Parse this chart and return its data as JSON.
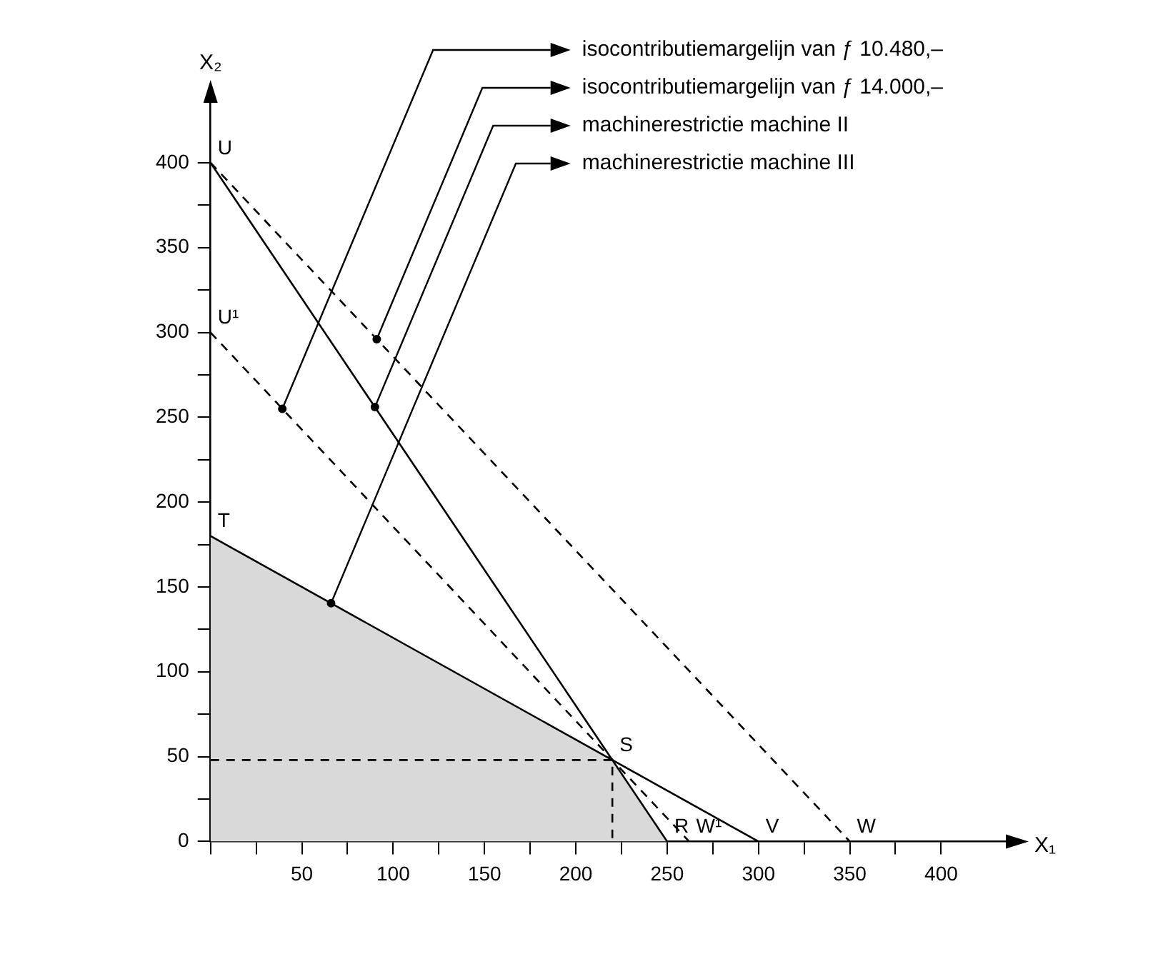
{
  "chart_data": {
    "type": "line",
    "xlabel": "X₁",
    "ylabel": "X₂",
    "series": [
      {
        "name": "isocontributiemargelijn van ƒ 10.480,–",
        "type": "line",
        "color": "#000000",
        "line_style": "dashed",
        "x": [
          0,
          262
        ],
        "values": [
          300,
          0
        ]
      },
      {
        "name": "isocontributiemargelijn van ƒ 14.000,–",
        "type": "line",
        "color": "#000000",
        "line_style": "dashed",
        "x": [
          0,
          350
        ],
        "values": [
          400,
          0
        ]
      },
      {
        "name": "machinerestrictie machine II",
        "type": "line",
        "color": "#000000",
        "line_style": "solid",
        "x": [
          0,
          250
        ],
        "values": [
          400,
          0
        ]
      },
      {
        "name": "machinerestrictie machine III",
        "type": "line",
        "color": "#000000",
        "line_style": "solid",
        "x": [
          0,
          300
        ],
        "values": [
          180,
          0
        ]
      },
      {
        "type": "area",
        "color": "#d9d9d9",
        "x": [
          0,
          220,
          250
        ],
        "values": [
          180,
          48,
          0
        ]
      },
      {
        "type": "line",
        "color": "#000000",
        "line_style": "dashed",
        "x": [
          0,
          220,
          220
        ],
        "values": [
          48,
          48,
          0
        ]
      }
    ],
    "annotations": [
      {
        "text": "U",
        "x": 0,
        "y": 400
      },
      {
        "text": "U¹",
        "x": 0,
        "y": 300
      },
      {
        "text": "T",
        "x": 0,
        "y": 180
      },
      {
        "text": "S",
        "x": 220,
        "y": 48
      },
      {
        "text": "R",
        "x": 250,
        "y": 0
      },
      {
        "text": "W¹",
        "x": 262,
        "y": 0
      },
      {
        "text": "V",
        "x": 300,
        "y": 0
      },
      {
        "text": "W",
        "x": 350,
        "y": 0
      }
    ],
    "xlim": [
      0,
      437
    ],
    "ylim": [
      0,
      437
    ],
    "xticks": [
      {
        "value": 0,
        "label": null
      },
      {
        "value": 25,
        "label": null
      },
      50,
      {
        "value": 75,
        "label": null
      },
      100,
      {
        "value": 125,
        "label": null
      },
      150,
      {
        "value": 175,
        "label": null
      },
      200,
      {
        "value": 225,
        "label": null
      },
      250,
      {
        "value": 275,
        "label": null
      },
      300,
      {
        "value": 325,
        "label": null
      },
      350,
      {
        "value": 375,
        "label": null
      },
      400
    ],
    "yticks": [
      0,
      {
        "value": 25,
        "label": null
      },
      50,
      {
        "value": 75,
        "label": null
      },
      100,
      {
        "value": 125,
        "label": null
      },
      150,
      {
        "value": 175,
        "label": null
      },
      200,
      {
        "value": 225,
        "label": null
      },
      250,
      {
        "value": 275,
        "label": null
      },
      300,
      {
        "value": 325,
        "label": null
      },
      350,
      {
        "value": 375,
        "label": null
      },
      400
    ],
    "legend": "top right"
  }
}
